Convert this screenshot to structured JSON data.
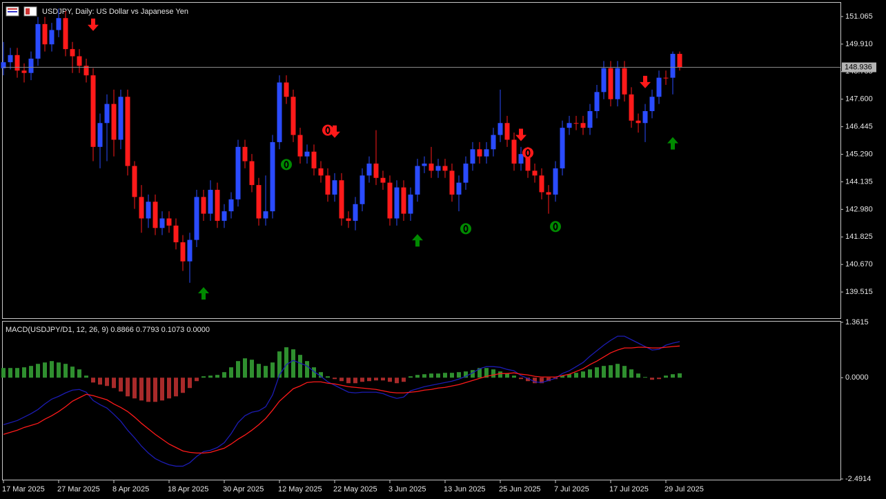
{
  "chart_data": [
    {
      "type": "candlestick",
      "title": "USDJPY, Daily:  US Dollar vs Japanese Yen",
      "up_color": "#2a4bff",
      "down_color": "#ff1a1a",
      "ylim": [
        138.418,
        151.643
      ],
      "yticks": [
        151.065,
        {
          "value": 149.91,
          "label": "149.910"
        },
        148.755,
        {
          "value": 147.6,
          "label": "147.600"
        },
        146.445,
        {
          "value": 145.29,
          "label": "145.290"
        },
        144.135,
        {
          "value": 142.98,
          "label": "142.980"
        },
        141.825,
        {
          "value": 140.67,
          "label": "140.670"
        },
        139.515
      ],
      "current_price": 148.936,
      "open": [
        148.9,
        149.15,
        149.45,
        148.8,
        148.7,
        149.3,
        150.75,
        149.9,
        150.5,
        151.0,
        149.7,
        149.4,
        149.0,
        148.6,
        145.6,
        146.6,
        147.4,
        145.9,
        147.7,
        144.8,
        143.5,
        142.6,
        143.3,
        142.2,
        142.6,
        142.3,
        141.6,
        140.8,
        141.7,
        143.5,
        142.8,
        143.8,
        142.5,
        142.9,
        143.4,
        145.6,
        145.0,
        144.0,
        142.6,
        142.9,
        145.8,
        148.3,
        147.7,
        146.1,
        145.2,
        145.4,
        144.7,
        144.4,
        143.6,
        144.2,
        142.6,
        142.5,
        143.2,
        144.4,
        144.9,
        144.3,
        144.1,
        142.6,
        143.9,
        142.8,
        143.6,
        144.8,
        144.9,
        144.6,
        144.8,
        144.6,
        143.6,
        144.1,
        144.9,
        145.5,
        145.2,
        145.5,
        146.1,
        146.6,
        145.9,
        144.9,
        145.3,
        144.6,
        144.4,
        143.7,
        143.6,
        144.7,
        146.4,
        146.6,
        146.6,
        146.4,
        147.1,
        147.9,
        148.9,
        147.6,
        148.9,
        147.8,
        146.7,
        146.6,
        147.1,
        147.7,
        148.5,
        148.5,
        149.5
      ],
      "high": [
        150.0,
        149.75,
        149.75,
        149.1,
        149.6,
        151.05,
        151.05,
        150.8,
        151.4,
        151.3,
        150.0,
        149.7,
        149.3,
        148.9,
        147.0,
        147.8,
        148.0,
        148.0,
        148.0,
        145.0,
        144.0,
        143.6,
        143.6,
        142.9,
        142.9,
        142.6,
        141.9,
        142.0,
        143.8,
        143.8,
        144.2,
        144.1,
        143.2,
        143.7,
        145.9,
        145.9,
        145.3,
        144.3,
        144.4,
        146.1,
        148.6,
        148.6,
        148.0,
        146.4,
        145.7,
        145.7,
        145.0,
        144.7,
        144.5,
        144.5,
        142.9,
        143.5,
        144.7,
        145.2,
        146.3,
        144.6,
        144.4,
        144.2,
        144.2,
        143.9,
        145.1,
        145.2,
        145.6,
        145.1,
        145.1,
        144.9,
        144.4,
        145.2,
        145.8,
        145.8,
        145.8,
        146.4,
        148.0,
        146.9,
        146.2,
        145.6,
        145.6,
        144.9,
        144.7,
        144.0,
        145.0,
        146.7,
        146.9,
        146.9,
        146.9,
        147.4,
        148.2,
        149.2,
        149.2,
        149.2,
        149.2,
        148.1,
        147.0,
        147.4,
        148.0,
        148.8,
        148.8,
        149.6,
        149.6
      ],
      "low": [
        148.6,
        148.85,
        148.5,
        148.3,
        148.4,
        149.0,
        149.6,
        149.6,
        150.2,
        149.4,
        148.7,
        148.7,
        148.3,
        145.0,
        144.7,
        145.0,
        145.2,
        145.5,
        144.4,
        143.0,
        142.0,
        142.2,
        141.9,
        141.9,
        142.0,
        141.3,
        140.4,
        139.9,
        141.4,
        142.5,
        142.5,
        142.2,
        142.2,
        142.6,
        143.1,
        144.7,
        143.7,
        142.3,
        142.3,
        142.6,
        145.5,
        147.4,
        145.8,
        144.9,
        144.9,
        144.4,
        144.1,
        143.3,
        143.3,
        142.3,
        142.2,
        142.1,
        142.9,
        144.1,
        144.0,
        143.8,
        142.3,
        142.3,
        142.5,
        142.5,
        143.3,
        144.5,
        144.3,
        144.3,
        144.3,
        143.3,
        142.9,
        143.8,
        144.6,
        144.9,
        144.9,
        145.2,
        145.8,
        145.6,
        144.6,
        144.6,
        144.3,
        144.1,
        143.4,
        142.8,
        143.3,
        144.4,
        146.1,
        146.3,
        146.1,
        146.1,
        146.8,
        147.6,
        147.3,
        147.3,
        147.5,
        146.4,
        146.2,
        145.8,
        146.8,
        147.4,
        148.2,
        147.8,
        148.8
      ],
      "close": [
        149.15,
        149.45,
        148.8,
        148.7,
        149.3,
        150.75,
        149.9,
        150.5,
        151.0,
        149.7,
        149.4,
        149.0,
        148.6,
        145.6,
        146.6,
        147.4,
        145.9,
        147.7,
        144.8,
        143.5,
        142.6,
        143.3,
        142.2,
        142.6,
        142.3,
        141.6,
        140.8,
        141.7,
        143.5,
        142.8,
        143.8,
        142.5,
        142.9,
        143.4,
        145.6,
        145.0,
        144.0,
        142.6,
        142.9,
        145.8,
        148.3,
        147.7,
        146.1,
        145.2,
        145.4,
        144.7,
        144.4,
        143.6,
        144.2,
        142.6,
        142.5,
        143.2,
        144.4,
        144.9,
        144.3,
        144.1,
        142.6,
        143.9,
        142.8,
        143.6,
        144.8,
        144.9,
        144.6,
        144.8,
        144.6,
        143.6,
        144.1,
        144.9,
        145.5,
        145.2,
        145.5,
        146.1,
        146.6,
        145.9,
        144.9,
        145.3,
        144.6,
        144.4,
        143.7,
        143.6,
        144.7,
        146.4,
        146.6,
        146.6,
        146.4,
        147.1,
        147.9,
        148.9,
        147.6,
        148.9,
        147.8,
        146.7,
        146.6,
        147.1,
        147.7,
        148.5,
        148.5,
        149.5,
        148.94
      ],
      "signals": {
        "up_arrows": {
          "color": "#008a00",
          "x": [
            29,
            60,
            97
          ],
          "y": [
            139.46,
            141.68,
            145.75
          ]
        },
        "down_arrows": {
          "color": "#ff1a1a",
          "x": [
            13,
            48,
            75,
            93
          ],
          "y": [
            150.72,
            146.24,
            146.1,
            148.32
          ]
        },
        "green_marks": {
          "color": "#008a00",
          "x": [
            41,
            67,
            80
          ],
          "y": [
            144.86,
            142.17,
            142.26
          ]
        },
        "red_marks": {
          "color": "#ff1a1a",
          "x": [
            47,
            76
          ],
          "y": [
            146.3,
            145.35
          ]
        }
      }
    },
    {
      "type": "macd",
      "title": "MACD(USDJPY/D1, 12, 26, 9) 0.8866 0.7793 0.1073 0.0000",
      "ylim": [
        -2.4914,
        1.3615
      ],
      "yticks": [
        1.3615,
        {
          "value": 0,
          "label": "0.0000"
        },
        -2.4914
      ],
      "xticks": [
        {
          "value": 0,
          "label": "17 Mar 2025"
        },
        {
          "value": 8,
          "label": "27 Mar 2025"
        },
        {
          "value": 16,
          "label": "8 Apr 2025"
        },
        {
          "value": 24,
          "label": "18 Apr 2025"
        },
        {
          "value": 32,
          "label": "30 Apr 2025"
        },
        {
          "value": 40,
          "label": "12 May 2025"
        },
        {
          "value": 48,
          "label": "22 May 2025"
        },
        {
          "value": 56,
          "label": "3 Jun 2025"
        },
        {
          "value": 64,
          "label": "13 Jun 2025"
        },
        {
          "value": 72,
          "label": "25 Jun 2025"
        },
        {
          "value": 80,
          "label": "7 Jul 2025"
        },
        {
          "value": 88,
          "label": "17 Jul 2025"
        },
        {
          "value": 96,
          "label": "29 Jul 2025"
        }
      ],
      "histogram": {
        "pos_color": "#2f8f2f",
        "neg_color": "#a82a2a",
        "values": [
          0.238,
          0.238,
          0.238,
          0.255,
          0.289,
          0.34,
          0.374,
          0.408,
          0.374,
          0.34,
          0.272,
          0.204,
          0.051,
          -0.119,
          -0.17,
          -0.204,
          -0.255,
          -0.34,
          -0.459,
          -0.51,
          -0.561,
          -0.595,
          -0.595,
          -0.561,
          -0.51,
          -0.459,
          -0.374,
          -0.255,
          -0.085,
          0.034,
          0.051,
          0.068,
          0.136,
          0.255,
          0.408,
          0.476,
          0.442,
          0.34,
          0.289,
          0.374,
          0.646,
          0.748,
          0.697,
          0.561,
          0.408,
          0.255,
          0.136,
          0.034,
          -0.034,
          -0.085,
          -0.136,
          -0.136,
          -0.102,
          -0.085,
          -0.068,
          -0.068,
          -0.102,
          -0.136,
          -0.102,
          0.034,
          0.068,
          0.085,
          0.102,
          0.102,
          0.119,
          0.119,
          0.136,
          0.153,
          0.187,
          0.238,
          0.238,
          0.204,
          0.153,
          0.102,
          0.051,
          -0.034,
          -0.085,
          -0.136,
          -0.136,
          -0.085,
          -0.034,
          0.051,
          0.085,
          0.119,
          0.153,
          0.204,
          0.255,
          0.289,
          0.306,
          0.34,
          0.289,
          0.204,
          0.102,
          0.017,
          -0.051,
          -0.034,
          0.051,
          0.085,
          0.1073
        ]
      },
      "macd": {
        "color": "#1c1cb4",
        "values": [
          -1.156,
          -1.105,
          -1.054,
          -0.969,
          -0.884,
          -0.782,
          -0.646,
          -0.527,
          -0.459,
          -0.374,
          -0.306,
          -0.289,
          -0.357,
          -0.561,
          -0.663,
          -0.748,
          -0.901,
          -1.071,
          -1.292,
          -1.479,
          -1.683,
          -1.853,
          -1.989,
          -2.074,
          -2.142,
          -2.176,
          -2.176,
          -2.091,
          -1.938,
          -1.819,
          -1.785,
          -1.717,
          -1.598,
          -1.377,
          -1.105,
          -0.935,
          -0.85,
          -0.816,
          -0.714,
          -0.425,
          0.068,
          0.323,
          0.425,
          0.357,
          0.289,
          0.153,
          0.034,
          -0.102,
          -0.187,
          -0.272,
          -0.357,
          -0.374,
          -0.357,
          -0.357,
          -0.357,
          -0.391,
          -0.459,
          -0.51,
          -0.476,
          -0.323,
          -0.272,
          -0.221,
          -0.187,
          -0.153,
          -0.119,
          -0.085,
          -0.034,
          0.034,
          0.119,
          0.221,
          0.272,
          0.272,
          0.255,
          0.204,
          0.17,
          0.051,
          -0.017,
          -0.102,
          -0.119,
          -0.068,
          -0.017,
          0.102,
          0.17,
          0.272,
          0.374,
          0.527,
          0.663,
          0.799,
          0.918,
          1.02,
          1.02,
          0.935,
          0.85,
          0.765,
          0.68,
          0.697,
          0.799,
          0.85,
          0.8866
        ]
      },
      "signal": {
        "color": "#ff1a1a",
        "values": [
          -1.394,
          -1.343,
          -1.292,
          -1.224,
          -1.173,
          -1.122,
          -1.02,
          -0.935,
          -0.833,
          -0.714,
          -0.578,
          -0.493,
          -0.408,
          -0.442,
          -0.493,
          -0.544,
          -0.646,
          -0.731,
          -0.833,
          -0.969,
          -1.122,
          -1.258,
          -1.394,
          -1.513,
          -1.632,
          -1.717,
          -1.802,
          -1.836,
          -1.853,
          -1.853,
          -1.836,
          -1.785,
          -1.734,
          -1.632,
          -1.513,
          -1.411,
          -1.292,
          -1.156,
          -1.003,
          -0.799,
          -0.578,
          -0.425,
          -0.272,
          -0.204,
          -0.119,
          -0.102,
          -0.102,
          -0.136,
          -0.153,
          -0.187,
          -0.221,
          -0.238,
          -0.255,
          -0.272,
          -0.289,
          -0.323,
          -0.357,
          -0.374,
          -0.374,
          -0.357,
          -0.34,
          -0.306,
          -0.289,
          -0.255,
          -0.238,
          -0.204,
          -0.17,
          -0.119,
          -0.068,
          -0.017,
          0.034,
          0.068,
          0.102,
          0.102,
          0.119,
          0.085,
          0.068,
          0.034,
          0.017,
          0.017,
          0.017,
          0.051,
          0.085,
          0.153,
          0.221,
          0.323,
          0.408,
          0.51,
          0.612,
          0.68,
          0.731,
          0.731,
          0.748,
          0.748,
          0.731,
          0.731,
          0.748,
          0.765,
          0.7793
        ]
      }
    }
  ]
}
